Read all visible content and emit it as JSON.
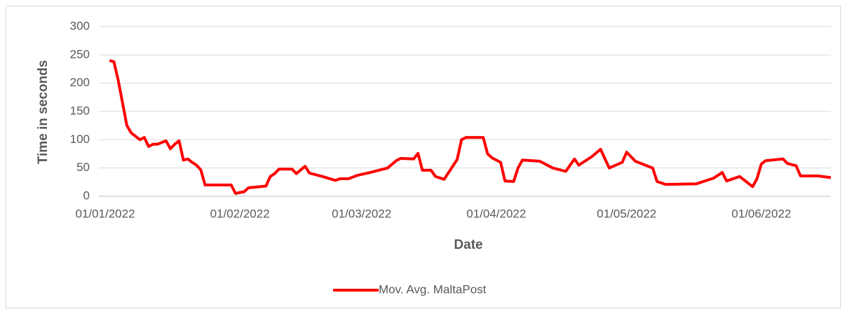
{
  "chart_data": {
    "type": "line",
    "y_label": "Time in seconds",
    "x_label": "Date",
    "x": [
      "02/01/2022",
      "03/01/2022",
      "04/01/2022",
      "05/01/2022",
      "06/01/2022",
      "07/01/2022",
      "08/01/2022",
      "09/01/2022",
      "10/01/2022",
      "11/01/2022",
      "12/01/2022",
      "13/01/2022",
      "14/01/2022",
      "15/01/2022",
      "16/01/2022",
      "17/01/2022",
      "18/01/2022",
      "19/01/2022",
      "20/01/2022",
      "21/01/2022",
      "22/01/2022",
      "23/01/2022",
      "24/01/2022",
      "30/01/2022",
      "31/01/2022",
      "02/02/2022",
      "03/02/2022",
      "07/02/2022",
      "08/02/2022",
      "09/02/2022",
      "10/02/2022",
      "13/02/2022",
      "14/02/2022",
      "16/02/2022",
      "17/02/2022",
      "20/02/2022",
      "23/02/2022",
      "24/02/2022",
      "26/02/2022",
      "28/02/2022",
      "03/03/2022",
      "07/03/2022",
      "09/03/2022",
      "10/03/2022",
      "13/03/2022",
      "14/03/2022",
      "15/03/2022",
      "17/03/2022",
      "18/03/2022",
      "20/03/2022",
      "23/03/2022",
      "24/03/2022",
      "25/03/2022",
      "29/03/2022",
      "30/03/2022",
      "31/03/2022",
      "02/04/2022",
      "03/04/2022",
      "05/04/2022",
      "06/04/2022",
      "07/04/2022",
      "11/04/2022",
      "14/04/2022",
      "17/04/2022",
      "19/04/2022",
      "20/04/2022",
      "23/04/2022",
      "25/04/2022",
      "27/04/2022",
      "30/04/2022",
      "01/05/2022",
      "03/05/2022",
      "07/05/2022",
      "08/05/2022",
      "10/05/2022",
      "17/05/2022",
      "21/05/2022",
      "23/05/2022",
      "24/05/2022",
      "27/05/2022",
      "30/05/2022",
      "31/05/2022",
      "01/06/2022",
      "02/06/2022",
      "06/06/2022",
      "07/06/2022",
      "09/06/2022",
      "10/06/2022",
      "14/06/2022",
      "17/06/2022"
    ],
    "series": [
      {
        "name": "Mov. Avg. MaltaPost",
        "color": "#ff0000",
        "values": [
          240,
          238,
          205,
          165,
          125,
          112,
          106,
          100,
          104,
          88,
          92,
          92,
          95,
          98,
          84,
          92,
          98,
          64,
          66,
          60,
          55,
          47,
          20,
          20,
          5,
          8,
          15,
          18,
          35,
          40,
          48,
          48,
          40,
          53,
          41,
          35,
          28,
          31,
          31,
          37,
          42,
          50,
          63,
          67,
          66,
          76,
          46,
          46,
          35,
          30,
          65,
          100,
          104,
          104,
          75,
          68,
          60,
          27,
          26,
          50,
          64,
          62,
          50,
          44,
          66,
          55,
          70,
          83,
          50,
          60,
          78,
          62,
          50,
          26,
          21,
          22,
          32,
          42,
          27,
          35,
          17,
          31,
          57,
          63,
          66,
          58,
          54,
          36,
          36,
          33
        ]
      }
    ],
    "xlim": [
      "01/01/2022",
      "17/06/2022"
    ],
    "xticks": [
      "01/01/2022",
      "01/02/2022",
      "01/03/2022",
      "01/04/2022",
      "01/05/2022",
      "01/06/2022"
    ],
    "ylim": [
      0,
      300
    ],
    "yticks": [
      0,
      50,
      100,
      150,
      200,
      250,
      300
    ],
    "grid": true,
    "legend": "bottom"
  }
}
